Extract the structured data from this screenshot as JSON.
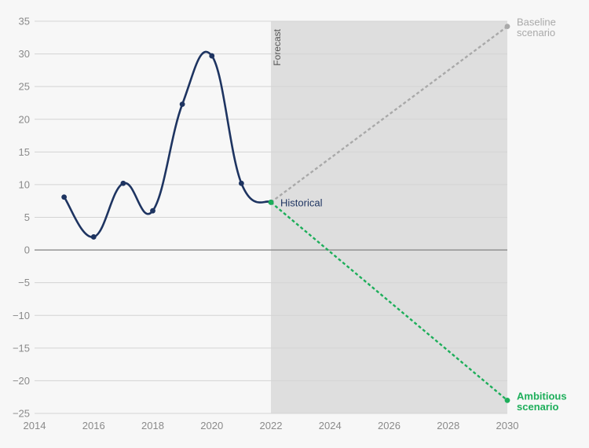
{
  "chart_data": {
    "type": "line",
    "xlim": [
      2014,
      2030
    ],
    "ylim": [
      -25,
      35
    ],
    "x_ticks": [
      2014,
      2016,
      2018,
      2020,
      2022,
      2024,
      2026,
      2028,
      2030
    ],
    "y_ticks": [
      35,
      30,
      25,
      20,
      15,
      10,
      5,
      0,
      -5,
      -10,
      -15,
      -20,
      -25
    ],
    "grid": "horizontal",
    "forecast_region": {
      "start": 2022,
      "end": 2030,
      "label": "Forecast",
      "color": "#dedede"
    },
    "series": [
      {
        "name": "Historical",
        "color": "#1e3461",
        "style": "solid-smooth",
        "x": [
          2015,
          2016,
          2017,
          2018,
          2019,
          2020,
          2021,
          2022
        ],
        "y": [
          8.1,
          2.0,
          10.2,
          6.0,
          22.3,
          29.7,
          10.2,
          7.3
        ]
      },
      {
        "name": "Baseline scenario",
        "label_lines": [
          "Baseline",
          "scenario"
        ],
        "color": "#a9a9a9",
        "style": "dotted",
        "x": [
          2022,
          2030
        ],
        "y": [
          7.3,
          34.2
        ]
      },
      {
        "name": "Ambitious scenario",
        "label_lines": [
          "Ambitious",
          "scenario"
        ],
        "color": "#1dae5a",
        "style": "dotted",
        "x": [
          2022,
          2030
        ],
        "y": [
          7.3,
          -23.0
        ]
      }
    ]
  }
}
